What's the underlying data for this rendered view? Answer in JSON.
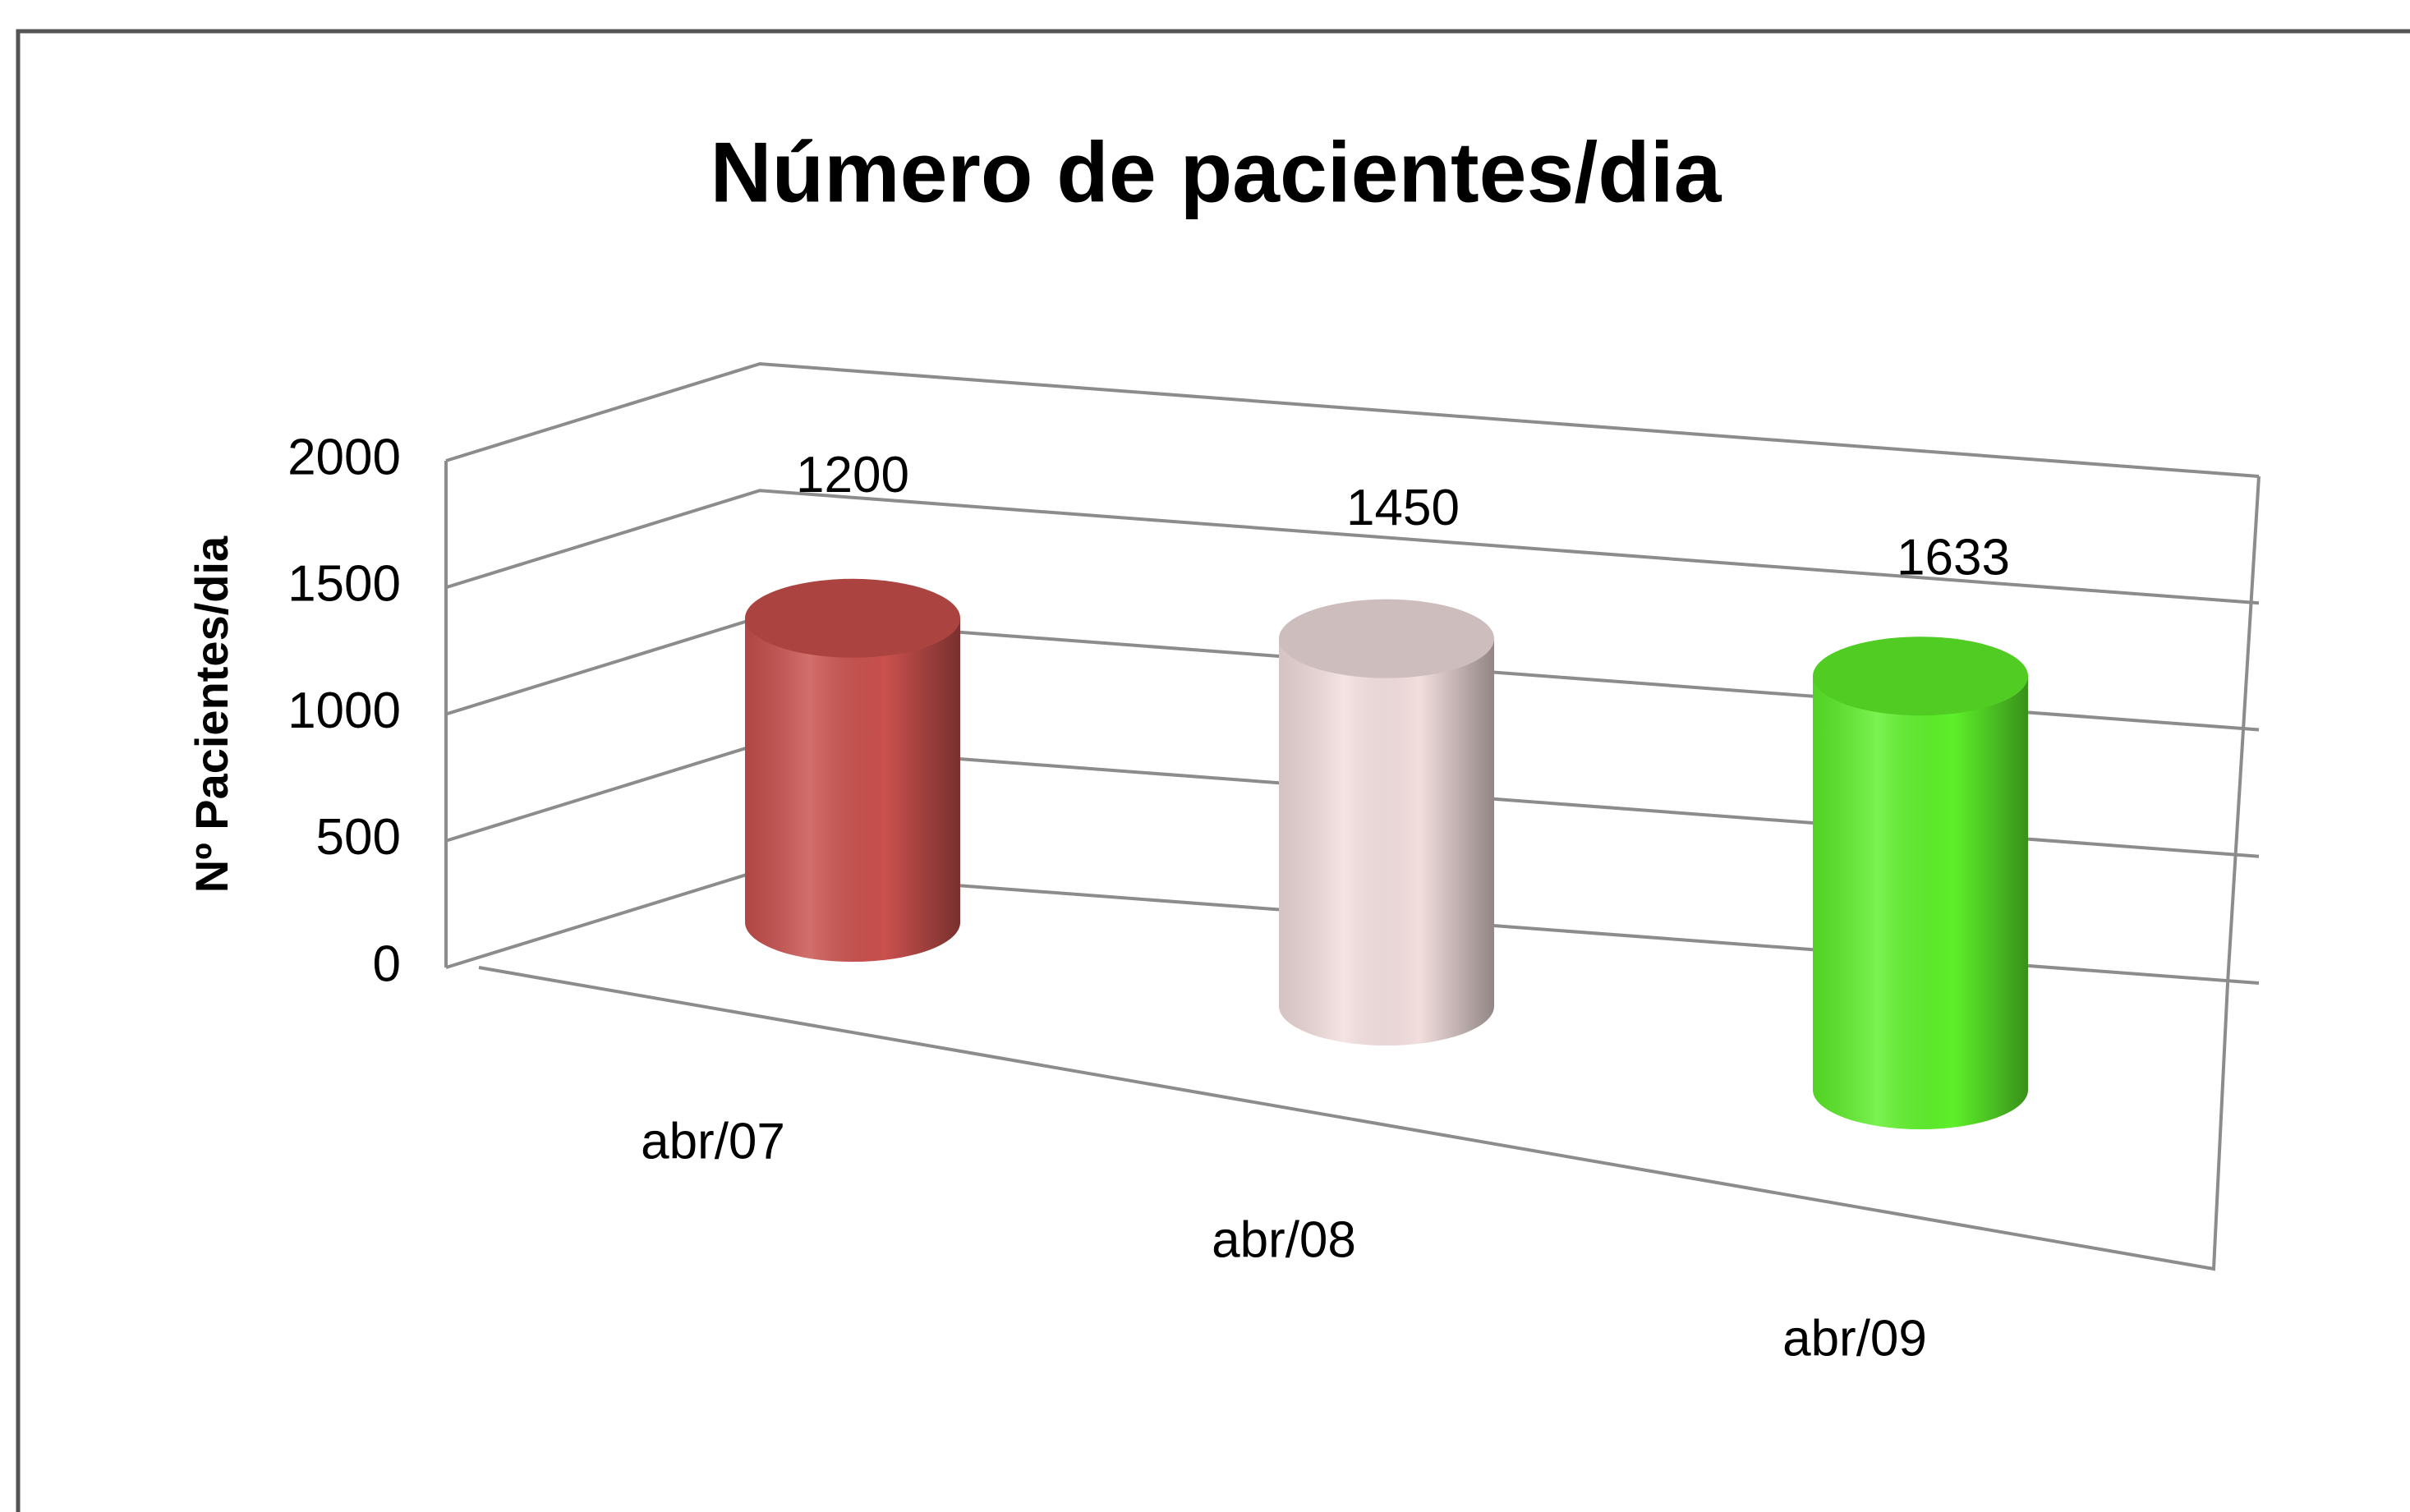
{
  "chart_data": {
    "type": "bar",
    "title": "Número de pacientes/dia",
    "y_label": "Nº Pacientes/dia",
    "categories": [
      "abr/07",
      "abr/08",
      "abr/09"
    ],
    "values": [
      1200,
      1450,
      1633
    ],
    "colors": [
      "#c9504d",
      "#f3dede",
      "#5ef02a"
    ],
    "title_color": "#0000c8",
    "ylim": [
      0,
      2000
    ],
    "yticks": [
      0,
      500,
      1000,
      1500,
      2000
    ],
    "grid": true
  }
}
